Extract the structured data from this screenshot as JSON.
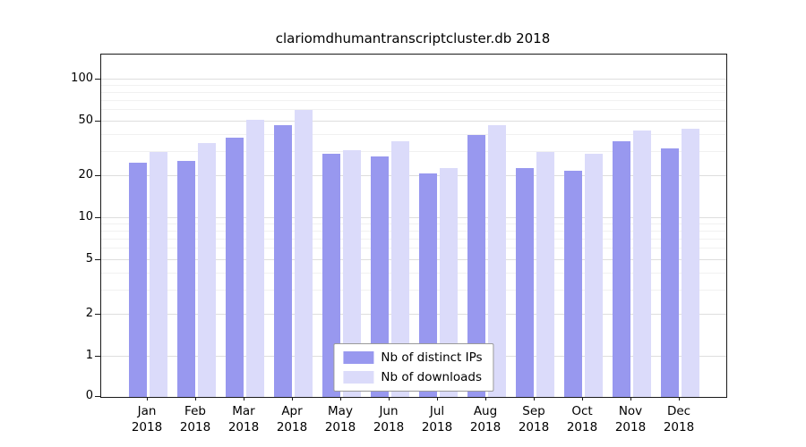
{
  "chart_data": {
    "type": "bar",
    "title": "clariomdhumantranscriptcluster.db 2018",
    "categories": [
      "Jan",
      "Feb",
      "Mar",
      "Apr",
      "May",
      "Jun",
      "Jul",
      "Aug",
      "Sep",
      "Oct",
      "Nov",
      "Dec"
    ],
    "year_label": "2018",
    "series": [
      {
        "name": "Nb of distinct IPs",
        "color": "#9898ef",
        "values": [
          25,
          26,
          38,
          47,
          29,
          28,
          21,
          40,
          23,
          22,
          36,
          32
        ]
      },
      {
        "name": "Nb of downloads",
        "color": "#dbdbfa",
        "values": [
          30,
          35,
          51,
          60,
          31,
          36,
          23,
          47,
          30,
          29,
          43,
          44
        ]
      }
    ],
    "yticks": [
      0,
      1,
      2,
      5,
      10,
      20,
      50,
      100
    ],
    "minor_yticks": [
      3,
      4,
      6,
      7,
      8,
      9,
      30,
      40,
      60,
      70,
      80,
      90
    ],
    "xlabel": "",
    "ylabel": "",
    "yscale": "log-with-zero",
    "grid": true,
    "legend_position": "lower center"
  }
}
